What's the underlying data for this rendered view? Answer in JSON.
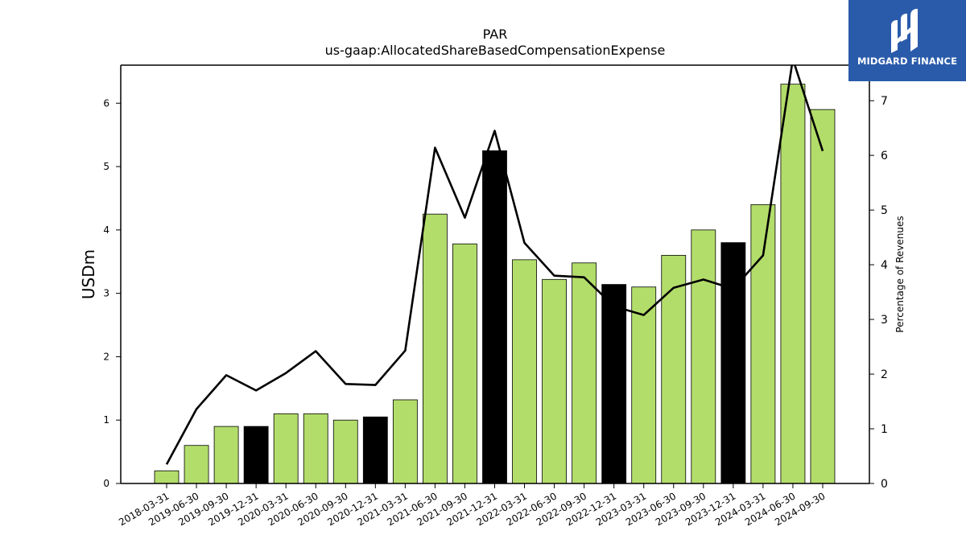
{
  "chart_data": {
    "type": "bar",
    "title": "PAR",
    "subtitle": "us-gaap:AllocatedShareBasedCompensationExpense",
    "ylabel": "USDm",
    "y2label": "Percentage of Revenues",
    "ylim": [
      0,
      6.6
    ],
    "y2lim": [
      0,
      7.65
    ],
    "yticks": [
      0,
      1,
      2,
      3,
      4,
      5,
      6
    ],
    "y2ticks": [
      0,
      1,
      2,
      3,
      4,
      5,
      6,
      7
    ],
    "categories": [
      "2018-03-31",
      "2019-06-30",
      "2019-09-30",
      "2019-12-31",
      "2020-03-31",
      "2020-06-30",
      "2020-09-30",
      "2020-12-31",
      "2021-03-31",
      "2021-06-30",
      "2021-09-30",
      "2021-12-31",
      "2022-03-31",
      "2022-06-30",
      "2022-09-30",
      "2022-12-31",
      "2023-03-31",
      "2023-06-30",
      "2023-09-30",
      "2023-12-31",
      "2024-03-31",
      "2024-06-30",
      "2024-09-30"
    ],
    "series": [
      {
        "type": "bar",
        "axis": "left",
        "values": [
          0.2,
          0.6,
          0.9,
          0.9,
          1.1,
          1.1,
          1.0,
          1.05,
          1.32,
          4.25,
          3.78,
          5.25,
          3.53,
          3.22,
          3.48,
          3.14,
          3.1,
          3.6,
          4.0,
          3.8,
          4.4,
          6.3,
          5.9
        ],
        "highlight": [
          false,
          false,
          false,
          true,
          false,
          false,
          false,
          true,
          false,
          false,
          false,
          true,
          false,
          false,
          false,
          true,
          false,
          false,
          false,
          true,
          false,
          false,
          false
        ]
      },
      {
        "type": "line",
        "axis": "right",
        "values": [
          0.35,
          1.36,
          1.98,
          1.7,
          2.02,
          2.42,
          1.82,
          1.8,
          2.43,
          6.14,
          4.86,
          6.45,
          4.4,
          3.8,
          3.77,
          3.24,
          3.08,
          3.58,
          3.73,
          3.56,
          4.17,
          7.76,
          6.08
        ]
      }
    ],
    "colors": {
      "bar": "#b3dd6b",
      "bar_highlight": "#000000",
      "line": "#000000"
    },
    "grid": false
  },
  "logo": {
    "text": "MIDGARD FINANCE",
    "icon": "midgard-logo-icon",
    "background": "#2a5bab"
  }
}
